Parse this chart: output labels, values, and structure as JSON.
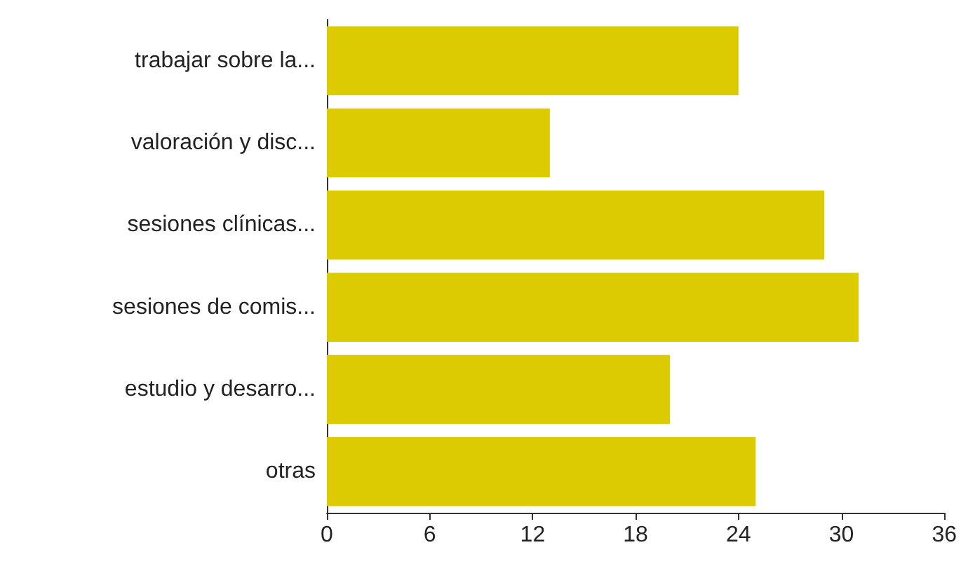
{
  "chart_data": {
    "type": "bar",
    "orientation": "horizontal",
    "categories": [
      "trabajar sobre la...",
      "valoración y disc...",
      "sesiones clínicas...",
      "sesiones de comis...",
      "estudio y desarro...",
      "otras"
    ],
    "values": [
      24,
      13,
      29,
      31,
      20,
      25
    ],
    "color": "#dccb00",
    "xlim": [
      0,
      36
    ],
    "xticks": [
      0,
      6,
      12,
      18,
      24,
      30,
      36
    ],
    "grid": false
  }
}
